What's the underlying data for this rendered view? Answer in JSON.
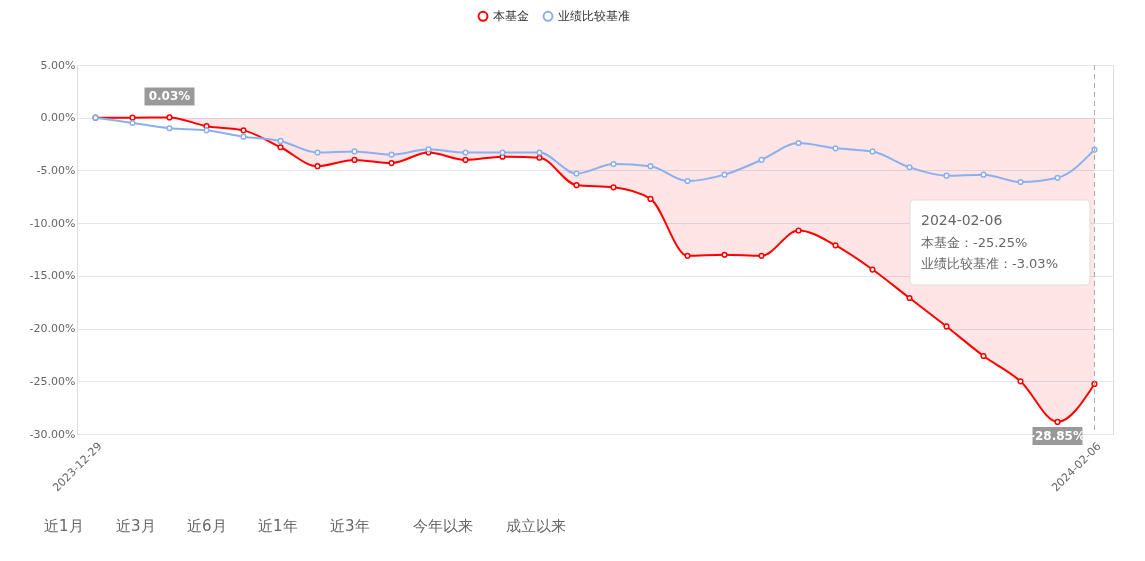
{
  "chart_data": {
    "type": "line",
    "categories": [
      "2023-12-29",
      null,
      null,
      null,
      null,
      null,
      null,
      null,
      null,
      null,
      null,
      null,
      null,
      null,
      null,
      null,
      null,
      null,
      null,
      null,
      null,
      null,
      null,
      null,
      null,
      null,
      null,
      "2024-02-06"
    ],
    "series": [
      {
        "name": "本基金",
        "type": "area",
        "color": "#ff0000",
        "values": [
          0,
          0,
          0.03,
          -0.8,
          -1.2,
          -2.8,
          -4.6,
          -4.0,
          -4.3,
          -3.3,
          -4.0,
          -3.7,
          -3.8,
          -6.4,
          -6.6,
          -7.7,
          -13.1,
          -13.0,
          -13.1,
          -10.7,
          -12.1,
          -14.4,
          -17.1,
          -19.8,
          -22.6,
          -25.0,
          -28.85,
          -25.25
        ],
        "value_labels": [
          null,
          null,
          "0.03%",
          null,
          null,
          null,
          null,
          null,
          null,
          null,
          null,
          null,
          null,
          null,
          null,
          null,
          null,
          null,
          null,
          null,
          null,
          null,
          null,
          null,
          null,
          null,
          "-28.85%",
          null
        ]
      },
      {
        "name": "业绩比较基准",
        "color": "#8ab0ee",
        "values": [
          0,
          -0.5,
          -1.0,
          -1.2,
          -1.8,
          -2.2,
          -3.3,
          -3.2,
          -3.5,
          -3.0,
          -3.3,
          -3.3,
          -3.3,
          -5.3,
          -4.4,
          -4.6,
          -6.0,
          -5.4,
          -4.0,
          -2.4,
          -2.9,
          -3.2,
          -4.7,
          -5.5,
          -5.4,
          -6.1,
          -5.7,
          -3.03
        ]
      }
    ],
    "ylim": [
      -30,
      5
    ],
    "yticks": [
      {
        "value": 5,
        "label": "5.00%"
      },
      {
        "value": 0,
        "label": "0.00%"
      },
      {
        "value": -5,
        "label": "-5.00%"
      },
      {
        "value": -10,
        "label": "-10.00%"
      },
      {
        "value": -15,
        "label": "-15.00%"
      },
      {
        "value": -20,
        "label": "-20.00%"
      },
      {
        "value": -25,
        "label": "-25.00%"
      },
      {
        "value": -30,
        "label": "-30.00%"
      }
    ],
    "ref_lines": [
      {
        "axis": "x",
        "value": "2024-02-06",
        "label": null,
        "color": "#aaaaaa",
        "line_style": "dashed"
      }
    ],
    "annotations": [
      "2024-02-06",
      "本基金：-25.25%",
      "业绩比较基准：-3.03%",
      "近1月",
      "近3月",
      "近6月",
      "近1年",
      "近3年",
      "今年以来",
      "成立以来"
    ],
    "grid": "y",
    "legend": "top",
    "marker": "circle",
    "line_style": "solid"
  }
}
